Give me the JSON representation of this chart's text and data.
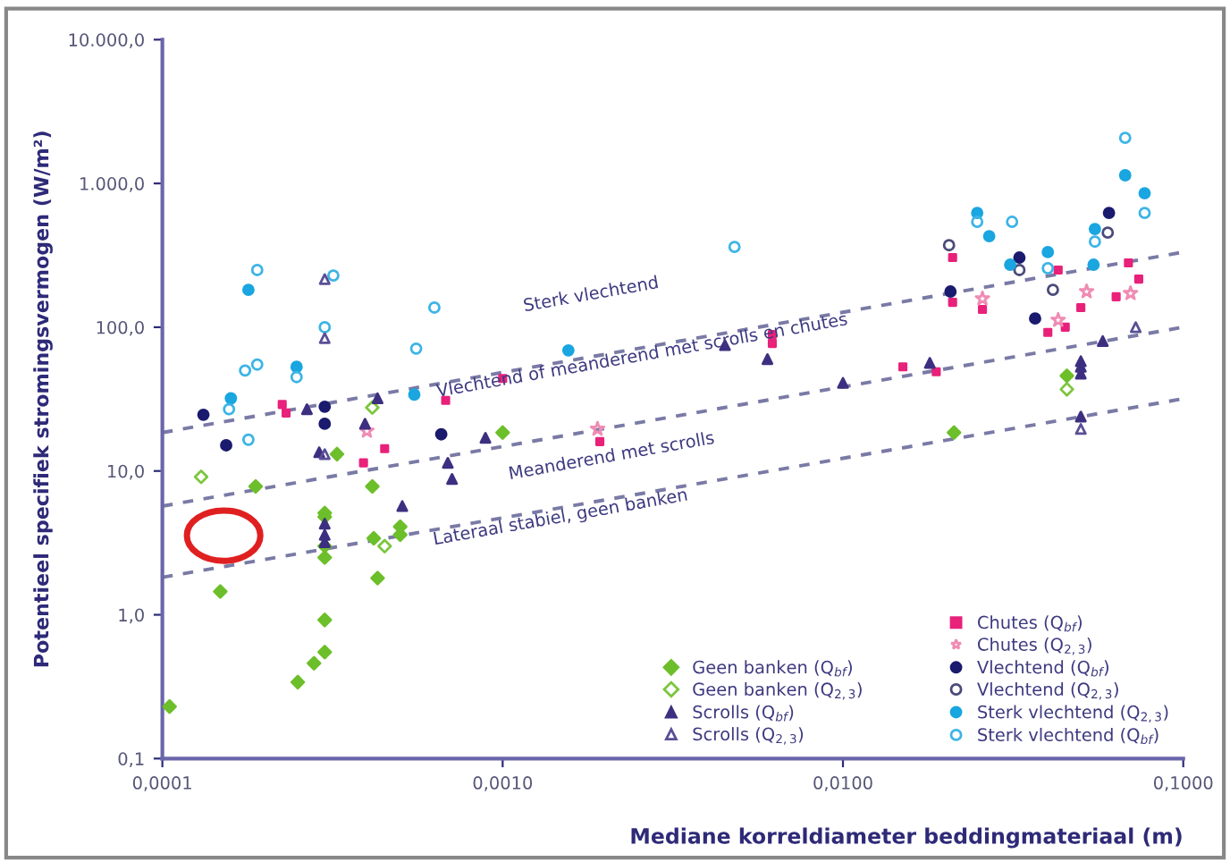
{
  "chart_data": {
    "type": "scatter",
    "xlabel": "Mediane korreldiameter beddingmateriaal (m)",
    "ylabel": "Potentieel specifiek stromingsvermogen (W/m²)",
    "log": "xy",
    "xlim": [
      0.0001,
      0.1
    ],
    "ylim": [
      0.1,
      10000
    ],
    "xticks": [
      {
        "value": 0.0001,
        "label": "0,0001"
      },
      {
        "value": 0.001,
        "label": "0,0010"
      },
      {
        "value": 0.01,
        "label": "0,0100"
      },
      {
        "value": 0.1,
        "label": "0,1000"
      }
    ],
    "yticks": [
      {
        "value": 0.1,
        "label": "0,1"
      },
      {
        "value": 1,
        "label": "1,0"
      },
      {
        "value": 10,
        "label": "10,0"
      },
      {
        "value": 100,
        "label": "100,0"
      },
      {
        "value": 1000,
        "label": "1.000,0"
      },
      {
        "value": 10000,
        "label": "10.000,0"
      }
    ],
    "grid": false,
    "legend": "bottom right",
    "annotations": [
      "Sterk vlechtend",
      "Vlechtend of meanderend met scrolls en chutes",
      "Meanderend met scrolls",
      "Lateraal stabiel, geen banken"
    ],
    "series": [
      {
        "name": "Chutes (Q$_{bf}$)",
        "color": "#e8217a",
        "marker": "square",
        "x": [
          0.000225,
          0.000231,
          0.00068,
          0.001,
          0.00039,
          0.00045,
          0.00193,
          0.0062,
          0.0062,
          0.015,
          0.0188,
          0.021,
          0.021,
          0.0257,
          0.0429,
          0.04,
          0.045,
          0.05,
          0.069,
          0.0635,
          0.074
        ],
        "values": [
          29,
          25.3,
          31,
          44,
          11.4,
          14.3,
          16,
          89,
          77,
          53,
          49,
          305,
          149,
          133,
          250,
          92,
          100,
          137,
          280,
          163,
          216
        ]
      },
      {
        "name": "Chutes (Q$_{2,3}$)",
        "color": "#f08cb4",
        "marker": "star",
        "x": [
          0.000399,
          0.0019,
          0.0257,
          0.0429,
          0.052,
          0.07
        ],
        "values": [
          19,
          19.6,
          158,
          112,
          177,
          172
        ]
      },
      {
        "name": "Vlechtend (Q$_{bf}$)",
        "color": "#1a1a6e",
        "marker": "circle",
        "x": [
          0.000132,
          0.0003,
          0.0003,
          0.00066,
          0.000154,
          0.0207,
          0.033,
          0.0367,
          0.0605
        ],
        "values": [
          24.6,
          28,
          21.3,
          18,
          15.1,
          177,
          305,
          115,
          624
        ]
      },
      {
        "name": "Vlechtend (Q$_{2,3}$)",
        "color": "#4a4a7a",
        "marker": "circle",
        "x": [
          0.0205,
          0.033,
          0.0414,
          0.06
        ],
        "values": [
          372,
          250,
          182,
          455
        ]
      },
      {
        "name": "Sterk vlechtend (Q$_{2,3}$)",
        "color": "#1aa6e0",
        "marker": "circle",
        "x": [
          0.000179,
          0.000248,
          0.000159,
          0.00055,
          0.00156,
          0.0248,
          0.0269,
          0.031,
          0.04,
          0.055,
          0.0545,
          0.0675,
          0.077
        ],
        "values": [
          182,
          53,
          32,
          34,
          69,
          624,
          430,
          272,
          333,
          482,
          272,
          1140,
          855
        ]
      },
      {
        "name": "Sterk vlechtend (Q$_{bf}$)",
        "color": "#3cb4e6",
        "marker": "circle",
        "x": [
          0.00019,
          0.000318,
          0.0003,
          0.00063,
          0.000557,
          0.000175,
          0.00019,
          0.000248,
          0.000157,
          0.000179,
          0.0048,
          0.0248,
          0.0314,
          0.04,
          0.055,
          0.0675,
          0.077
        ],
        "values": [
          250,
          229,
          100,
          137,
          71,
          50,
          55,
          45,
          26.9,
          16.5,
          362,
          541,
          541,
          257,
          394,
          2075,
          624
        ]
      },
      {
        "name": "Geen banken (Q$_{bf}$)",
        "color": "#6cbf2a",
        "marker": "diamond",
        "x": [
          0.000326,
          0.001,
          0.000188,
          0.000414,
          0.0003,
          0.0003,
          0.0003,
          0.0003,
          0.000418,
          0.0005,
          0.0005,
          0.000429,
          0.000148,
          0.0003,
          0.0003,
          0.000279,
          0.00025,
          0.000105,
          0.0212,
          0.0455
        ],
        "values": [
          13.1,
          18.5,
          7.8,
          7.8,
          5.1,
          4.8,
          3,
          2.5,
          3.4,
          4.1,
          3.6,
          1.8,
          1.45,
          0.92,
          0.55,
          0.46,
          0.34,
          0.23,
          18.5,
          46
        ]
      },
      {
        "name": "Geen banken (Q$_{2,3}$)",
        "color": "#7cc63c",
        "marker": "diamond",
        "x": [
          0.00013,
          0.000414,
          0.00045,
          0.0455
        ],
        "values": [
          9.1,
          27.6,
          3,
          37
        ]
      },
      {
        "name": "Scrolls (Q$_{bf}$)",
        "color": "#3d2f80",
        "marker": "triangle",
        "x": [
          0.000266,
          0.000429,
          0.000394,
          0.00089,
          0.000289,
          0.00069,
          0.00071,
          0.000507,
          0.0003,
          0.0003,
          0.0003,
          0.0045,
          0.006,
          0.01,
          0.018,
          0.058,
          0.05,
          0.05,
          0.05,
          0.05
        ],
        "values": [
          26.9,
          32,
          21.3,
          17,
          13.5,
          11.4,
          8.8,
          5.7,
          4.3,
          3.6,
          3.2,
          75,
          60,
          41,
          56.5,
          80,
          58,
          53,
          47.5,
          23.9
        ]
      },
      {
        "name": "Scrolls (Q$_{2,3}$)",
        "color": "#5a4f96",
        "marker": "triangle",
        "x": [
          0.0003,
          0.0003,
          0.0003,
          0.0725,
          0.05
        ],
        "values": [
          216,
          84,
          13.1,
          100,
          19.6
        ]
      },
      {
        "type": "line",
        "color": "#7a7aa6",
        "line_style": "dashed",
        "marker": "none",
        "x": [
          0.0001,
          0.1
        ],
        "values": [
          18.5,
          333
        ]
      },
      {
        "type": "line",
        "color": "#7a7aa6",
        "line_style": "dashed",
        "marker": "none",
        "x": [
          0.0001,
          0.1
        ],
        "values": [
          5.7,
          100
        ]
      },
      {
        "type": "line",
        "color": "#7a7aa6",
        "line_style": "dashed",
        "marker": "none",
        "x": [
          0.0001,
          0.1
        ],
        "values": [
          1.82,
          31.8
        ]
      }
    ]
  }
}
